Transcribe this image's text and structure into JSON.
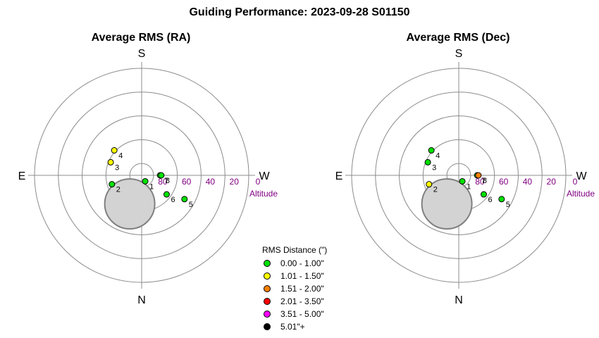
{
  "title": "Guiding Performance: 2023-09-28 S01150",
  "chart_data": [
    {
      "type": "scatter",
      "projection": "polar-altaz",
      "title": "Average RMS (RA)",
      "directions": {
        "top": "S",
        "bottom": "N",
        "left": "E",
        "right": "W"
      },
      "altitude_label": "Altitude",
      "altitude_ticks": [
        "80",
        "60",
        "40",
        "20",
        "0"
      ],
      "altitude_tick_values": [
        80,
        60,
        40,
        20,
        0
      ],
      "rings_altitude": [
        80,
        60,
        40,
        20,
        0
      ],
      "zenith_exclusion_center": {
        "x": -10,
        "y": -24
      },
      "zenith_exclusion_radius": 21,
      "points": [
        {
          "label": "1",
          "x": 3,
          "y": -5,
          "color": "#00e000"
        },
        {
          "label": "2",
          "x": -25,
          "y": -7.5,
          "color": "#00e000"
        },
        {
          "label": "3",
          "x": -26,
          "y": 11,
          "color": "#ffff00"
        },
        {
          "label": "4",
          "x": -23,
          "y": 21,
          "color": "#ffff00"
        },
        {
          "label": "5",
          "x": 36,
          "y": -20,
          "color": "#00e000"
        },
        {
          "label": "6",
          "x": 21,
          "y": -16,
          "color": "#00e000"
        },
        {
          "label": "7",
          "x": 15.5,
          "y": 0,
          "color": "#00e000"
        },
        {
          "label": "8",
          "x": 16.5,
          "y": 0,
          "color": "#00e000"
        }
      ]
    },
    {
      "type": "scatter",
      "projection": "polar-altaz",
      "title": "Average RMS (Dec)",
      "directions": {
        "top": "S",
        "bottom": "N",
        "left": "E",
        "right": "W"
      },
      "altitude_label": "Altitude",
      "altitude_ticks": [
        "80",
        "60",
        "40",
        "20",
        "0"
      ],
      "altitude_tick_values": [
        80,
        60,
        40,
        20,
        0
      ],
      "rings_altitude": [
        80,
        60,
        40,
        20,
        0
      ],
      "zenith_exclusion_center": {
        "x": -10,
        "y": -24
      },
      "zenith_exclusion_radius": 21,
      "points": [
        {
          "label": "1",
          "x": 3,
          "y": -5,
          "color": "#00e000"
        },
        {
          "label": "2",
          "x": -25,
          "y": -7.5,
          "color": "#ffff00"
        },
        {
          "label": "3",
          "x": -26,
          "y": 11,
          "color": "#00e000"
        },
        {
          "label": "4",
          "x": -23,
          "y": 21,
          "color": "#00e000"
        },
        {
          "label": "5",
          "x": 36,
          "y": -20,
          "color": "#00e000"
        },
        {
          "label": "6",
          "x": 21,
          "y": -16,
          "color": "#00e000"
        },
        {
          "label": "7",
          "x": 15.5,
          "y": 0,
          "color": "#00e000"
        },
        {
          "label": "8",
          "x": 16.5,
          "y": 0,
          "color": "#ff8000"
        }
      ]
    }
  ],
  "legend": {
    "title": "RMS Distance (\")",
    "items": [
      {
        "label": "0.00 - 1.00\"",
        "color": "#00e000"
      },
      {
        "label": "1.01 - 1.50\"",
        "color": "#ffff00"
      },
      {
        "label": "1.51 - 2.00\"",
        "color": "#ff8000"
      },
      {
        "label": "2.01 - 3.50\"",
        "color": "#ff0000"
      },
      {
        "label": "3.51 - 5.00\"",
        "color": "#ff00ff"
      },
      {
        "label": "5.01\"+",
        "color": "#000000"
      }
    ]
  },
  "colors": {
    "ring": "#8c8c8c",
    "axis_text": "#800080",
    "exclusion_fill": "#d3d3d3",
    "exclusion_stroke": "#808080"
  }
}
